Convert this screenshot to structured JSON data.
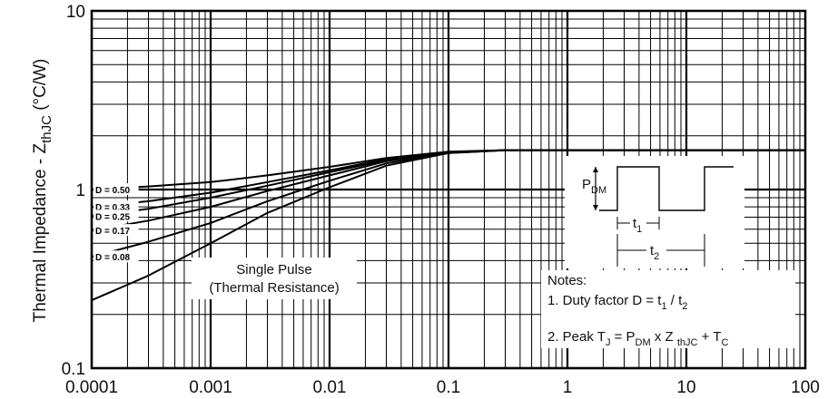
{
  "chart_data": {
    "type": "line",
    "xscale": "log",
    "yscale": "log",
    "xlim": [
      0.0001,
      100
    ],
    "ylim": [
      0.1,
      10
    ],
    "ylabel": {
      "main": "Thermal Impedance - Z",
      "sub": "thJC",
      "unit": "(°C/W)"
    },
    "x_tick_labels": [
      "0.0001",
      "0.001",
      "0.01",
      "0.1",
      "1",
      "10",
      "100"
    ],
    "y_tick_labels": [
      "0.1",
      "1",
      "10"
    ],
    "grid": true,
    "series": [
      {
        "name": "D = 0.50",
        "x": [
          0.0001,
          0.0003,
          0.001,
          0.003,
          0.01,
          0.03,
          0.1,
          0.3,
          1,
          3,
          10,
          100
        ],
        "y": [
          1.0,
          1.04,
          1.1,
          1.2,
          1.34,
          1.5,
          1.63,
          1.66,
          1.66,
          1.66,
          1.66,
          1.66
        ]
      },
      {
        "name": "D = 0.33",
        "x": [
          0.0001,
          0.0003,
          0.001,
          0.003,
          0.01,
          0.03,
          0.1,
          0.3,
          1,
          3,
          10,
          100
        ],
        "y": [
          0.8,
          0.86,
          0.96,
          1.1,
          1.28,
          1.48,
          1.62,
          1.66,
          1.66,
          1.66,
          1.66,
          1.66
        ]
      },
      {
        "name": "D = 0.25",
        "x": [
          0.0001,
          0.0003,
          0.001,
          0.003,
          0.01,
          0.03,
          0.1,
          0.3,
          1,
          3,
          10,
          100
        ],
        "y": [
          0.71,
          0.78,
          0.9,
          1.05,
          1.25,
          1.46,
          1.62,
          1.66,
          1.66,
          1.66,
          1.66,
          1.66
        ]
      },
      {
        "name": "D = 0.17",
        "x": [
          0.0001,
          0.0003,
          0.001,
          0.003,
          0.01,
          0.03,
          0.1,
          0.3,
          1,
          3,
          10,
          100
        ],
        "y": [
          0.59,
          0.67,
          0.8,
          0.98,
          1.2,
          1.44,
          1.61,
          1.66,
          1.66,
          1.66,
          1.66,
          1.66
        ]
      },
      {
        "name": "D = 0.08",
        "x": [
          0.0001,
          0.0003,
          0.001,
          0.003,
          0.01,
          0.03,
          0.1,
          0.3,
          1,
          3,
          10,
          100
        ],
        "y": [
          0.42,
          0.51,
          0.65,
          0.86,
          1.12,
          1.4,
          1.6,
          1.66,
          1.66,
          1.66,
          1.66,
          1.66
        ]
      },
      {
        "name": "Single Pulse",
        "x": [
          0.0001,
          0.0003,
          0.001,
          0.003,
          0.01,
          0.03,
          0.1,
          0.3,
          1,
          3,
          10,
          100
        ],
        "y": [
          0.24,
          0.33,
          0.5,
          0.74,
          1.03,
          1.36,
          1.6,
          1.66,
          1.66,
          1.66,
          1.66,
          1.66
        ]
      }
    ],
    "annotations": {
      "single_pulse": [
        "Single Pulse",
        "(Thermal Resistance)"
      ],
      "pulse_diagram": {
        "pdm": "P",
        "pdm_sub": "DM",
        "t1": "t",
        "t1_sub": "1",
        "t2": "t",
        "t2_sub": "2"
      },
      "notes_title": "Notes:",
      "note1": {
        "text": "1. Duty factor D = ",
        "t1": "t",
        "t1_sub": "1",
        "sep": " / ",
        "t2": "t",
        "t2_sub": "2"
      },
      "note2": {
        "text": "2. Peak T",
        "tj_sub": "J",
        "eq": " = P",
        "pdm_sub": "DM",
        "x": " x Z ",
        "z_sub": "thJC",
        "plus": " + T",
        "tc_sub": "C"
      }
    }
  }
}
